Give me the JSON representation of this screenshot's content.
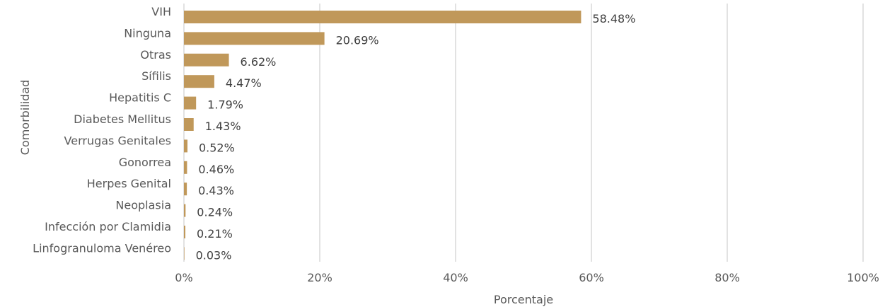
{
  "chart_data": {
    "type": "bar",
    "orientation": "horizontal",
    "categories": [
      "VIH",
      "Ninguna",
      "Otras",
      "Sífilis",
      "Hepatitis C",
      "Diabetes Mellitus",
      "Verrugas Genitales",
      "Gonorrea",
      "Herpes Genital",
      "Neoplasia",
      "Infección por Clamidia",
      "Linfogranuloma Venéreo"
    ],
    "values": [
      58.48,
      20.69,
      6.62,
      4.47,
      1.79,
      1.43,
      0.52,
      0.46,
      0.43,
      0.24,
      0.21,
      0.03
    ],
    "data_labels": [
      "58.48%",
      "20.69%",
      "6.62%",
      "4.47%",
      "1.79%",
      "1.43%",
      "0.52%",
      "0.46%",
      "0.43%",
      "0.24%",
      "0.21%",
      "0.03%"
    ],
    "xlabel": "Porcentaje",
    "ylabel": "Comorbilidad",
    "xlim": [
      0,
      100
    ],
    "xticks": [
      0,
      20,
      40,
      60,
      80,
      100
    ],
    "xtick_labels": [
      "0%",
      "20%",
      "40%",
      "60%",
      "80%",
      "100%"
    ],
    "grid": "vertical",
    "bar_color": "#C0985A",
    "grid_color": "#D9D9D9"
  }
}
